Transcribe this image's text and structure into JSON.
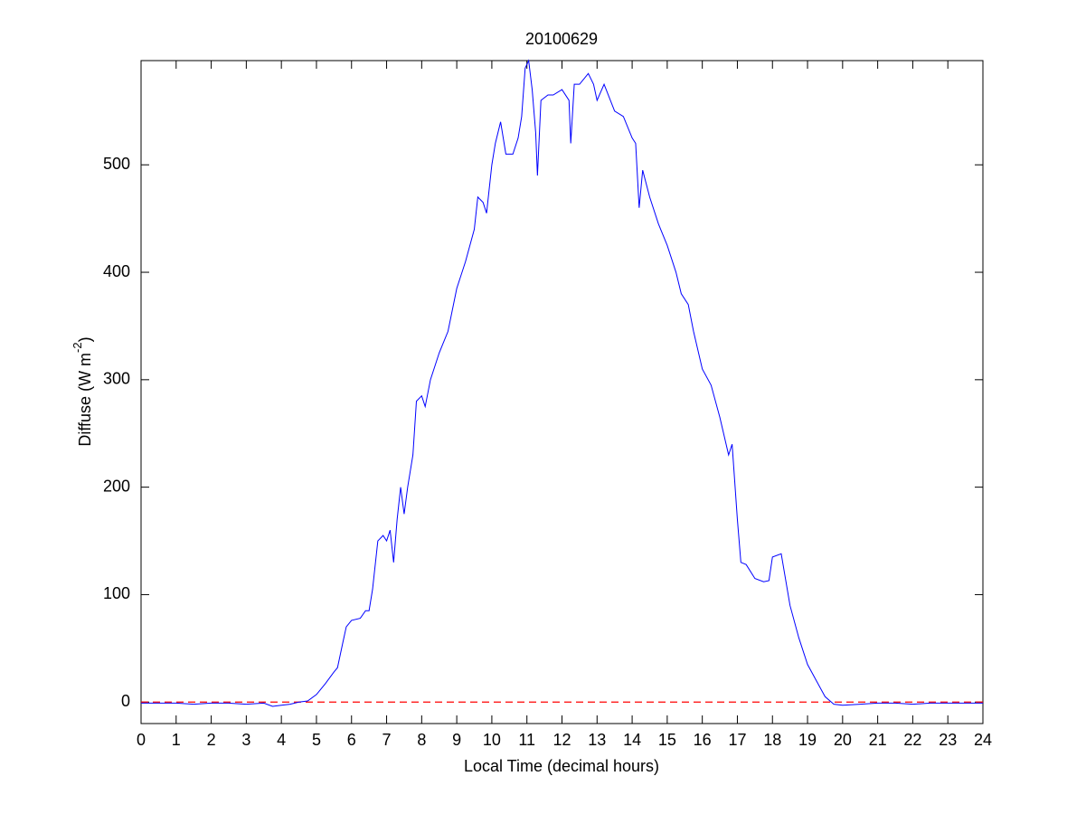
{
  "chart_data": {
    "type": "line",
    "title": "20100629",
    "xlabel": "Local Time (decimal hours)",
    "ylabel": {
      "text": "Diffuse (W m",
      "superscript": "-2",
      "suffix": ")"
    },
    "xlim": [
      0,
      24
    ],
    "ylim": [
      -20,
      597
    ],
    "xticks": [
      0,
      1,
      2,
      3,
      4,
      5,
      6,
      7,
      8,
      9,
      10,
      11,
      12,
      13,
      14,
      15,
      16,
      17,
      18,
      19,
      20,
      21,
      22,
      23,
      24
    ],
    "yticks": [
      0,
      100,
      200,
      300,
      400,
      500
    ],
    "grid": false,
    "reference_line": {
      "value": 0,
      "color": "#ff0000",
      "dash": "dashed"
    },
    "series": [
      {
        "color": "#0000ff",
        "x": [
          0,
          0.5,
          1,
          1.5,
          2,
          2.5,
          3,
          3.5,
          3.75,
          4,
          4.25,
          4.5,
          4.75,
          5,
          5.25,
          5.5,
          5.6,
          5.75,
          5.85,
          6,
          6.25,
          6.4,
          6.5,
          6.6,
          6.75,
          6.9,
          7,
          7.1,
          7.2,
          7.3,
          7.4,
          7.5,
          7.6,
          7.75,
          7.85,
          8,
          8.1,
          8.25,
          8.5,
          8.75,
          9,
          9.25,
          9.5,
          9.6,
          9.75,
          9.85,
          10,
          10.1,
          10.25,
          10.4,
          10.6,
          10.75,
          10.85,
          10.95,
          11.05,
          11.15,
          11.25,
          11.3,
          11.4,
          11.6,
          11.75,
          12,
          12.2,
          12.25,
          12.35,
          12.5,
          12.75,
          12.9,
          13,
          13.2,
          13.5,
          13.75,
          14,
          14.1,
          14.2,
          14.3,
          14.5,
          14.75,
          15,
          15.25,
          15.4,
          15.6,
          15.75,
          16,
          16.25,
          16.5,
          16.75,
          16.85,
          17,
          17.1,
          17.25,
          17.5,
          17.75,
          17.9,
          18,
          18.25,
          18.5,
          18.75,
          19,
          19.25,
          19.5,
          19.75,
          20,
          20.5,
          21,
          21.5,
          22,
          22.5,
          23,
          23.5,
          24
        ],
        "values": [
          -1,
          -1,
          -1,
          -2,
          -1,
          -1,
          -2,
          -1,
          -4,
          -3,
          -2,
          0,
          1,
          7,
          17,
          28,
          32,
          55,
          70,
          76,
          78,
          85,
          85,
          105,
          150,
          155,
          150,
          160,
          130,
          170,
          200,
          175,
          200,
          230,
          280,
          285,
          275,
          300,
          325,
          345,
          385,
          410,
          440,
          470,
          465,
          455,
          500,
          520,
          540,
          510,
          510,
          525,
          545,
          590,
          597,
          570,
          530,
          490,
          560,
          565,
          565,
          570,
          560,
          520,
          575,
          575,
          585,
          575,
          560,
          575,
          550,
          545,
          525,
          520,
          460,
          495,
          470,
          445,
          425,
          400,
          380,
          370,
          345,
          310,
          295,
          265,
          230,
          240,
          170,
          130,
          128,
          115,
          112,
          113,
          135,
          138,
          90,
          60,
          35,
          20,
          5,
          -2,
          -3,
          -2,
          -1,
          -1,
          -2,
          -1,
          -1,
          -1,
          -1
        ]
      }
    ]
  }
}
